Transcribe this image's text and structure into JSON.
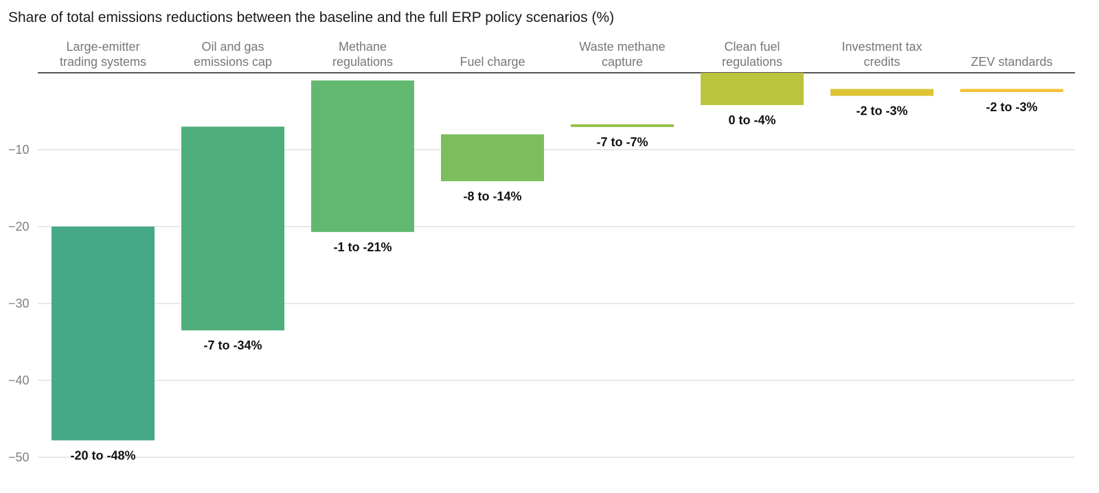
{
  "title": "Share of total emissions reductions between the baseline and the full ERP policy scenarios (%)",
  "chart_data": {
    "type": "bar",
    "subtype": "floating-range",
    "title": "Share of total emissions reductions between the baseline and the full ERP policy scenarios (%)",
    "xlabel": "",
    "ylabel": "",
    "ylim": [
      -50,
      0
    ],
    "yticks": [
      -10,
      -20,
      -30,
      -40,
      -50
    ],
    "grid": true,
    "legend": "none",
    "categories": [
      [
        "Large-emitter",
        "trading systems"
      ],
      [
        "Oil and gas",
        "emissions cap"
      ],
      [
        "Methane",
        "regulations"
      ],
      [
        "Fuel charge"
      ],
      [
        "Waste methane",
        "capture"
      ],
      [
        "Clean fuel",
        "regulations"
      ],
      [
        "Investment tax",
        "credits"
      ],
      [
        "ZEV standards"
      ]
    ],
    "ranges": [
      [
        -20,
        -47.8
      ],
      [
        -7,
        -33.5
      ],
      [
        -1,
        -20.7
      ],
      [
        -8,
        -14.1
      ],
      [
        -6.7,
        -7.0
      ],
      [
        0,
        -4.2
      ],
      [
        -2.1,
        -3.0
      ],
      [
        -2.1,
        -2.5
      ]
    ],
    "labels": [
      "-20 to -48%",
      "-7 to -34%",
      "-1 to -21%",
      "-8 to -14%",
      "-7 to -7%",
      "0 to -4%",
      "-2 to -3%",
      "-2 to -3%"
    ],
    "colors": [
      "#45A887",
      "#4FAF7C",
      "#62B870",
      "#7CBE5E",
      "#99C04A",
      "#BAC43C",
      "#DEC335",
      "#F5C234"
    ]
  }
}
